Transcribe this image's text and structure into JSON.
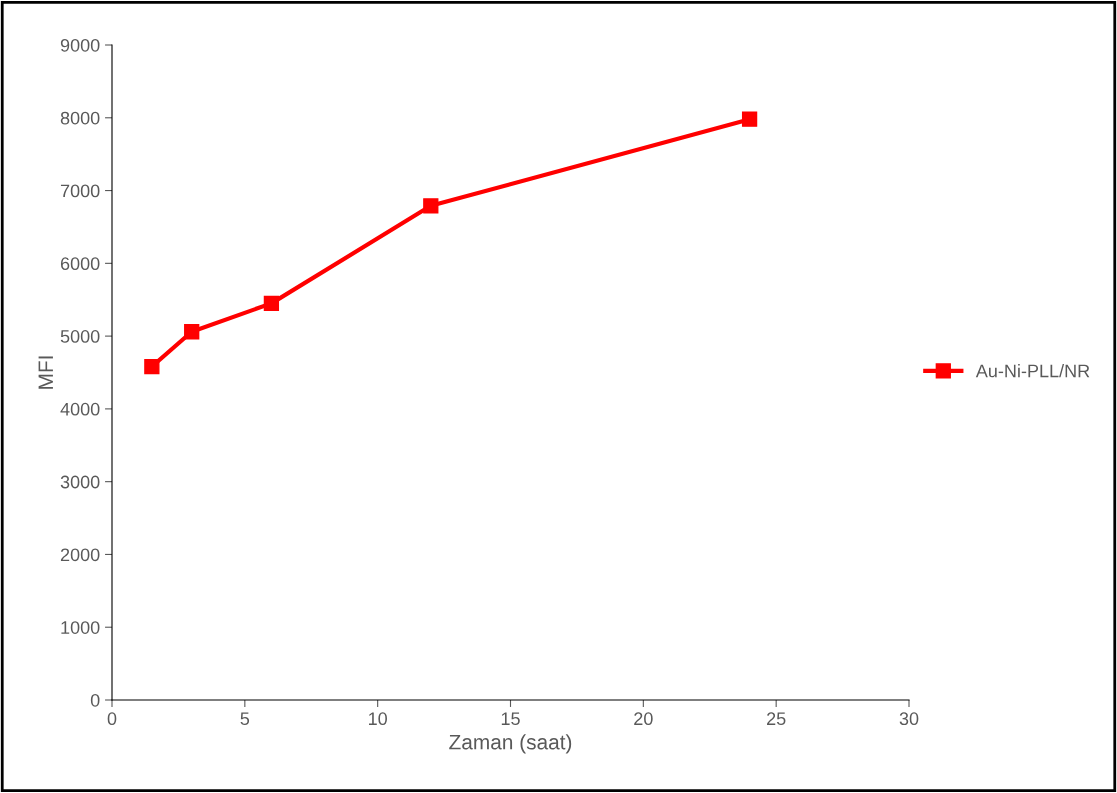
{
  "chart_data": {
    "type": "line",
    "xlabel": "Zaman (saat)",
    "ylabel": "MFI",
    "x": [
      1.5,
      3,
      6,
      12,
      24
    ],
    "series": [
      {
        "name": "Au-Ni-PLL/NR",
        "color": "#ff0000",
        "values": [
          4580,
          5060,
          5450,
          6790,
          7980
        ]
      }
    ],
    "xlim": [
      0,
      30
    ],
    "xticks": [
      0,
      5,
      10,
      15,
      20,
      25,
      30
    ],
    "ylim": [
      0,
      9000
    ],
    "yticks": [
      0,
      1000,
      2000,
      3000,
      4000,
      5000,
      6000,
      7000,
      8000,
      9000
    ],
    "grid": false,
    "legend": "right",
    "marker": "square",
    "line_style": "solid"
  }
}
